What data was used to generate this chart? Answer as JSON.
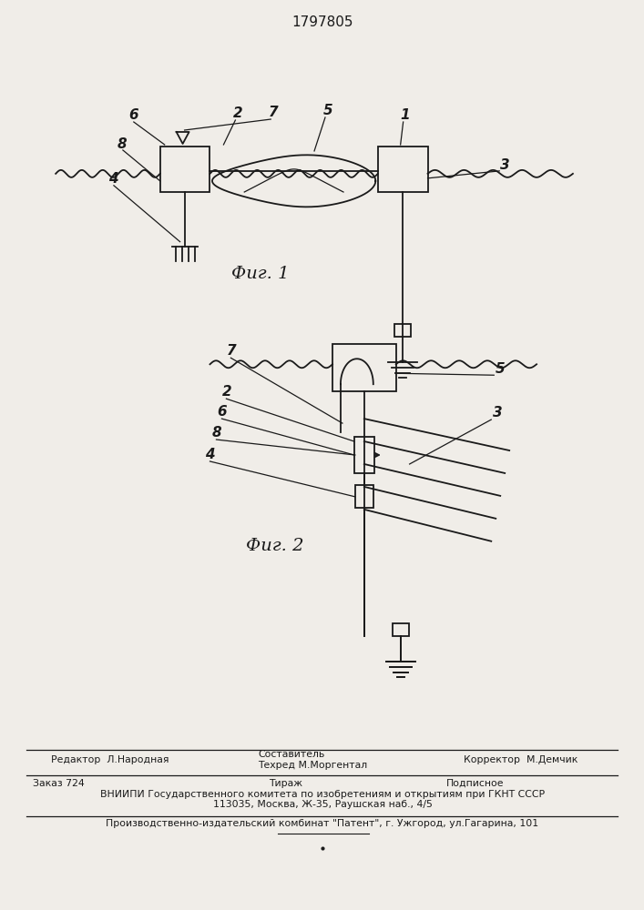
{
  "patent_number": "1797805",
  "background_color": "#f0ede8",
  "line_color": "#1a1a1a",
  "fig1_caption": "Фиг. 1",
  "fig2_caption": "Фиг. 2"
}
